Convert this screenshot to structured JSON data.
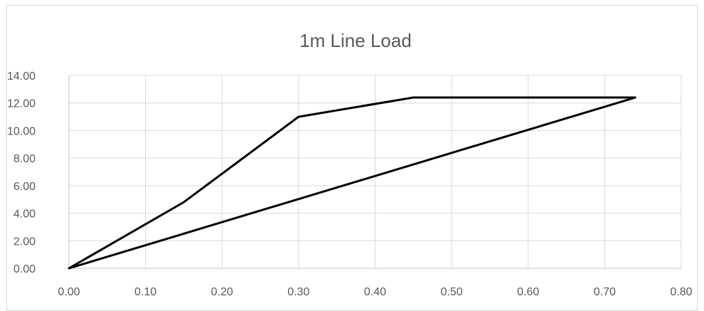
{
  "chart_data": {
    "type": "line",
    "title": "1m Line Load",
    "xlabel": "",
    "ylabel": "",
    "xlim": [
      0,
      0.8
    ],
    "ylim": [
      0,
      14
    ],
    "x_ticks": [
      "0.00",
      "0.10",
      "0.20",
      "0.30",
      "0.40",
      "0.50",
      "0.60",
      "0.70",
      "0.80"
    ],
    "y_ticks": [
      "0.00",
      "2.00",
      "4.00",
      "6.00",
      "8.00",
      "10.00",
      "12.00",
      "14.00"
    ],
    "grid": true,
    "legend": "none",
    "series": [
      {
        "color": "#000000",
        "x": [
          0.0,
          0.15,
          0.3,
          0.45,
          0.74,
          0.0
        ],
        "y": [
          0.0,
          4.8,
          11.0,
          12.4,
          12.4,
          0.0
        ]
      }
    ]
  }
}
